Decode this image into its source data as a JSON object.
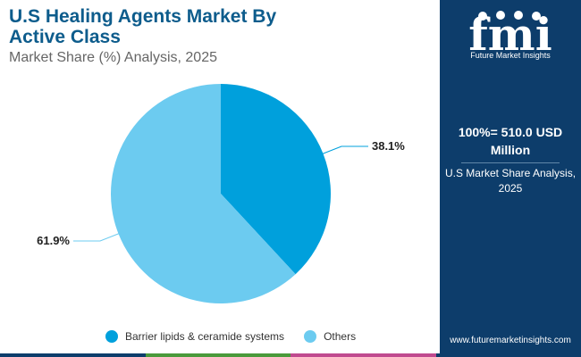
{
  "chart_data": {
    "type": "pie",
    "title": "U.S Healing Agents Market By Active Class",
    "subtitle": "Market Share (%) Analysis, 2025",
    "slices": [
      {
        "label": "Barrier lipids & ceramide systems",
        "value": 38.1,
        "value_label": "38.1%",
        "color": "#00a0dc"
      },
      {
        "label": "Others",
        "value": 61.9,
        "value_label": "61.9%",
        "color": "#6ccbf0"
      }
    ],
    "legend_position": "bottom"
  },
  "side_panel": {
    "logo_text": "fmi",
    "brand_name": "Future Market Insights",
    "total_label": "100%= 510.0 USD Million",
    "caption": "U.S Market Share Analysis, 2025",
    "website": "www.futuremarketinsights.com"
  },
  "colors": {
    "title": "#0d5c8c",
    "panel_bg": "#0d3d6b",
    "bar": [
      "#0d3d6b",
      "#4a9a3b",
      "#c04a8f",
      "#0d3d6b"
    ]
  }
}
